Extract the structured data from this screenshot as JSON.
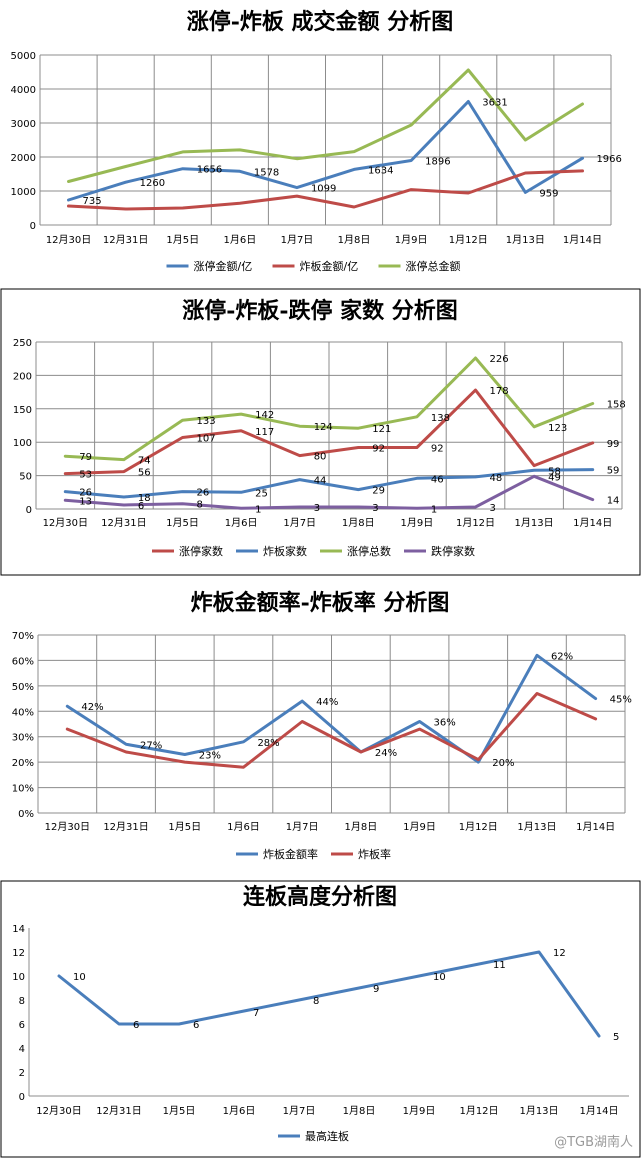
{
  "colors": {
    "blue": "#4a7ebb",
    "red": "#be4b48",
    "green": "#98b954",
    "purple": "#7d5fa0",
    "grid": "#8c8c8c"
  },
  "watermark": "@TGB湖南人",
  "chart_data": [
    {
      "type": "line",
      "title": "涨停-炸板 成交金额 分析图",
      "categories": [
        "12月30日",
        "12月31日",
        "1月5日",
        "1月6日",
        "1月7日",
        "1月8日",
        "1月9日",
        "1月12日",
        "1月13日",
        "1月14日"
      ],
      "ylim": [
        0,
        5000
      ],
      "yticks": [
        "0",
        "1000",
        "2000",
        "3000",
        "4000",
        "5000"
      ],
      "grid": true,
      "legend": "bottom",
      "series": [
        {
          "name": "涨停金额/亿",
          "color": "blue",
          "values": [
            735,
            1260,
            1656,
            1578,
            1099,
            1634,
            1896,
            3631,
            959,
            1966
          ],
          "labels": [
            "735",
            "1260",
            "1656",
            "1578",
            "1099",
            "1634",
            "1896",
            "3631",
            "959",
            "1966"
          ]
        },
        {
          "name": "炸板金额/亿",
          "color": "red",
          "values": [
            560,
            470,
            500,
            640,
            850,
            530,
            1040,
            940,
            1530,
            1590
          ],
          "labels": []
        },
        {
          "name": "涨停总金额",
          "color": "green",
          "values": [
            1280,
            1720,
            2150,
            2210,
            1950,
            2160,
            2940,
            4560,
            2500,
            3560
          ],
          "labels": []
        }
      ]
    },
    {
      "type": "line",
      "title": "涨停-炸板-跌停 家数 分析图",
      "categories": [
        "12月30日",
        "12月31日",
        "1月5日",
        "1月6日",
        "1月7日",
        "1月8日",
        "1月9日",
        "1月12日",
        "1月13日",
        "1月14日"
      ],
      "ylim": [
        0,
        250
      ],
      "yticks": [
        "0",
        "50",
        "100",
        "150",
        "200",
        "250"
      ],
      "grid": true,
      "legend": "bottom",
      "series": [
        {
          "name": "涨停家数",
          "color": "red",
          "values": [
            53,
            56,
            107,
            117,
            80,
            92,
            92,
            178,
            65,
            99
          ],
          "labels": [
            "53",
            "56",
            "107",
            "117",
            "80",
            "92",
            "92",
            "178",
            "",
            "99"
          ]
        },
        {
          "name": "炸板家数",
          "color": "blue",
          "values": [
            26,
            18,
            26,
            25,
            44,
            29,
            46,
            48,
            58,
            59
          ],
          "labels": [
            "26",
            "18",
            "26",
            "25",
            "44",
            "29",
            "46",
            "48",
            "58",
            "59"
          ]
        },
        {
          "name": "涨停总数",
          "color": "green",
          "values": [
            79,
            74,
            133,
            142,
            124,
            121,
            138,
            226,
            123,
            158
          ],
          "labels": [
            "79",
            "74",
            "133",
            "142",
            "124",
            "121",
            "138",
            "226",
            "123",
            "158"
          ]
        },
        {
          "name": "跌停家数",
          "color": "purple",
          "values": [
            13,
            6,
            8,
            1,
            3,
            3,
            1,
            3,
            49,
            14
          ],
          "labels": [
            "13",
            "6",
            "8",
            "1",
            "3",
            "3",
            "1",
            "3",
            "49",
            "14"
          ]
        }
      ]
    },
    {
      "type": "line",
      "title": "炸板金额率-炸板率 分析图",
      "categories": [
        "12月30日",
        "12月31日",
        "1月5日",
        "1月6日",
        "1月7日",
        "1月8日",
        "1月9日",
        "1月12日",
        "1月13日",
        "1月14日"
      ],
      "ylim": [
        0,
        70
      ],
      "yticks": [
        "0%",
        "10%",
        "20%",
        "30%",
        "40%",
        "50%",
        "60%",
        "70%"
      ],
      "grid": true,
      "legend": "bottom",
      "series": [
        {
          "name": "炸板金额率",
          "color": "blue",
          "values": [
            42,
            27,
            23,
            28,
            44,
            24,
            36,
            20,
            62,
            45
          ],
          "labels": [
            "42%",
            "27%",
            "23%",
            "28%",
            "44%",
            "24%",
            "36%",
            "20%",
            "62%",
            "45%"
          ]
        },
        {
          "name": "炸板率",
          "color": "red",
          "values": [
            33,
            24,
            20,
            18,
            36,
            24,
            33,
            21,
            47,
            37
          ],
          "labels": []
        }
      ]
    },
    {
      "type": "line",
      "title": "连板高度分析图",
      "categories": [
        "12月30日",
        "12月31日",
        "1月5日",
        "1月6日",
        "1月7日",
        "1月8日",
        "1月9日",
        "1月12日",
        "1月13日",
        "1月14日"
      ],
      "ylim": [
        0,
        14
      ],
      "yticks": [
        "0",
        "2",
        "4",
        "6",
        "8",
        "10",
        "12",
        "14"
      ],
      "grid": false,
      "legend": "bottom",
      "series": [
        {
          "name": "最高连板",
          "color": "blue",
          "values": [
            10,
            6,
            6,
            7,
            8,
            9,
            10,
            11,
            12,
            5
          ],
          "labels": [
            "10",
            "6",
            "6",
            "7",
            "8",
            "9",
            "10",
            "11",
            "12",
            "5"
          ]
        }
      ]
    }
  ]
}
